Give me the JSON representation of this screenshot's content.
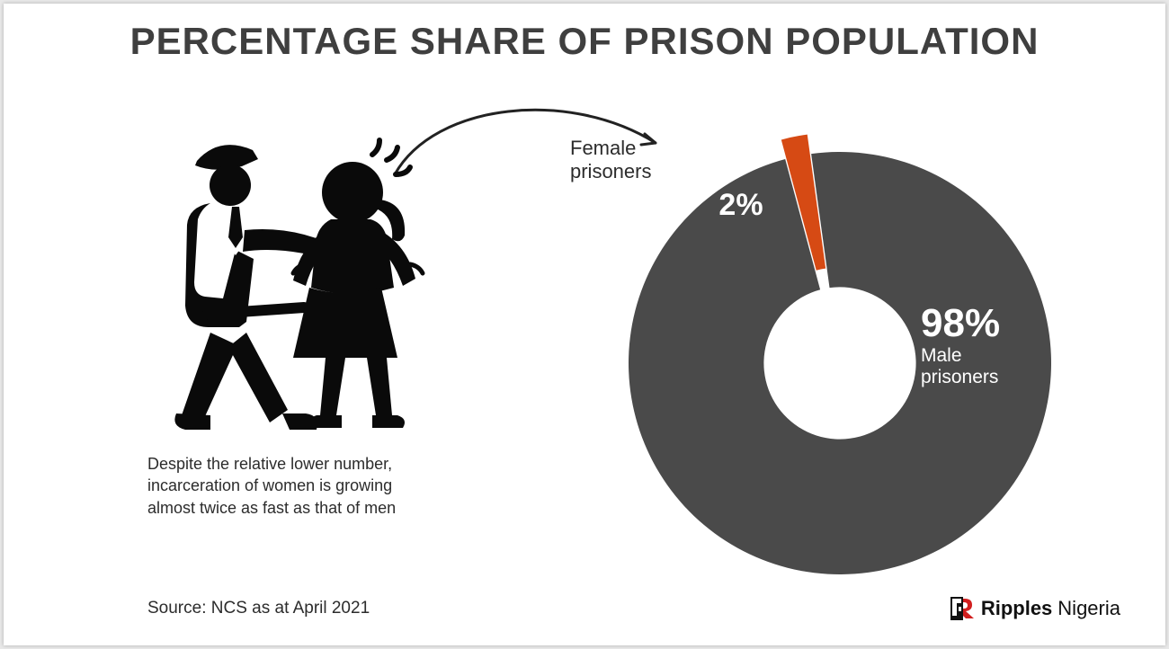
{
  "title": "PERCENTAGE SHARE OF PRISON POPULATION",
  "caption": "Despite the relative lower number, incarceration of women is growing almost twice as fast as that of men",
  "source": "Source: NCS as at April 2021",
  "donut": {
    "type": "donut",
    "background_color": "#ffffff",
    "inner_radius_ratio": 0.36,
    "slices": [
      {
        "label": "Female\nprisoners",
        "value": 2,
        "value_text": "2%",
        "color": "#d64a14",
        "exploded": true,
        "label_color": "#2c2c2c",
        "value_color": "#ffffff",
        "value_fontsize": 34
      },
      {
        "label": "Male\nprisoners",
        "value": 98,
        "value_text": "98%",
        "color": "#4a4a4a",
        "exploded": false,
        "label_color": "#ffffff",
        "value_color": "#ffffff",
        "value_fontsize": 44
      }
    ],
    "title_fontsize": 42,
    "label_fontsize": 22,
    "start_angle_deg": -105
  },
  "arrow_color": "#222222",
  "illustration_color": "#0a0a0a",
  "logo": {
    "mark_color": "#d21f1f",
    "text1": "Ripples",
    "text2": "Nigeria"
  }
}
